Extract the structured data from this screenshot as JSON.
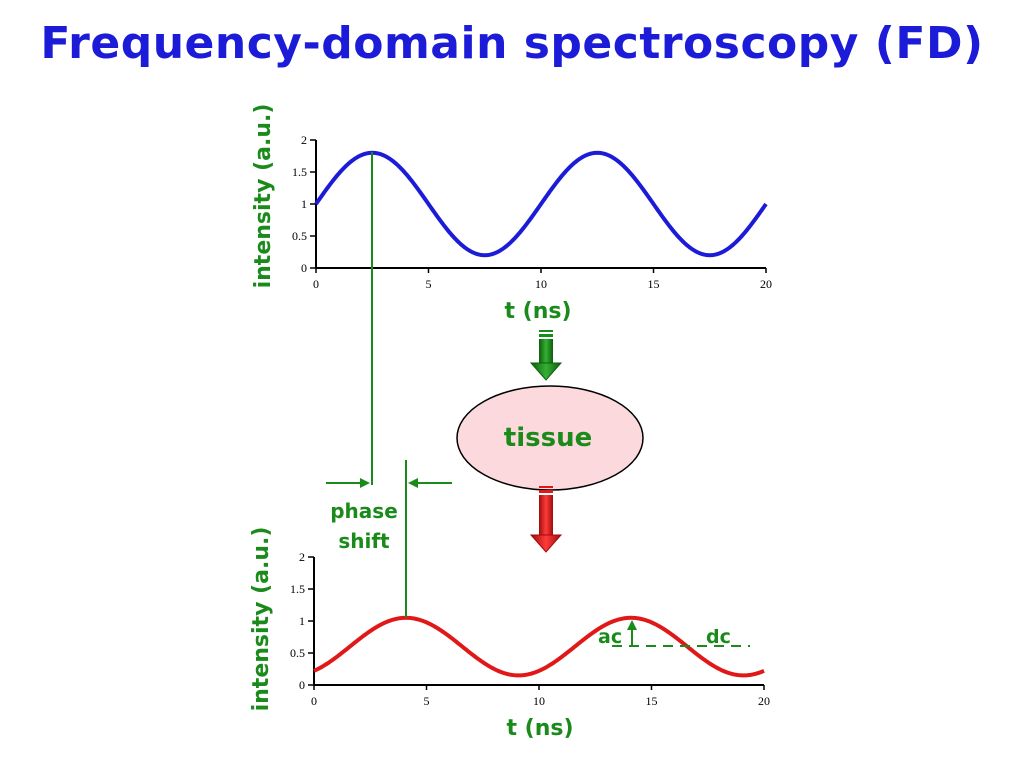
{
  "title": "Frequency-domain spectroscopy (FD)",
  "tissue_label": "tissue",
  "phase_shift_label": [
    "phase",
    "shift"
  ],
  "ac_label": "ac",
  "dc_label": "dc",
  "colors": {
    "title": "#1c1cd8",
    "input_wave": "#1c1cd8",
    "output_wave": "#e01818",
    "annotation": "#1a8a1a",
    "tissue_fill": "#fbd9dd",
    "green_arrow": "#1a8a1a",
    "red_arrow": "#e01818"
  },
  "chart_data": [
    {
      "type": "line",
      "name": "input-plot",
      "xlabel": "t (ns)",
      "ylabel": "intensity (a.u.)",
      "xlim": [
        0,
        20
      ],
      "ylim": [
        0,
        2
      ],
      "xticks": [
        "0",
        "5",
        "10",
        "15",
        "20"
      ],
      "yticks": [
        "0",
        "0.5",
        "1",
        "1.5",
        "2"
      ],
      "grid": false,
      "series": [
        {
          "function": "dc + ac*sin(2*pi*t/period - phase)",
          "dc": 1.0,
          "ac": 0.8,
          "period": 10,
          "phase": 0,
          "t_range": [
            0,
            20
          ]
        }
      ]
    },
    {
      "type": "line",
      "name": "output-plot",
      "xlabel": "t (ns)",
      "ylabel": "intensity (a.u.)",
      "xlim": [
        0,
        20
      ],
      "ylim": [
        0,
        2
      ],
      "xticks": [
        "0",
        "5",
        "10",
        "15",
        "20"
      ],
      "yticks": [
        "0",
        "0.5",
        "1",
        "1.5",
        "2"
      ],
      "grid": false,
      "series": [
        {
          "function": "dc + ac*sin(2*pi*t/period - phase)",
          "dc": 0.6,
          "ac": 0.45,
          "period": 10,
          "phase": 1.0,
          "t_range": [
            0,
            20
          ]
        }
      ]
    }
  ]
}
